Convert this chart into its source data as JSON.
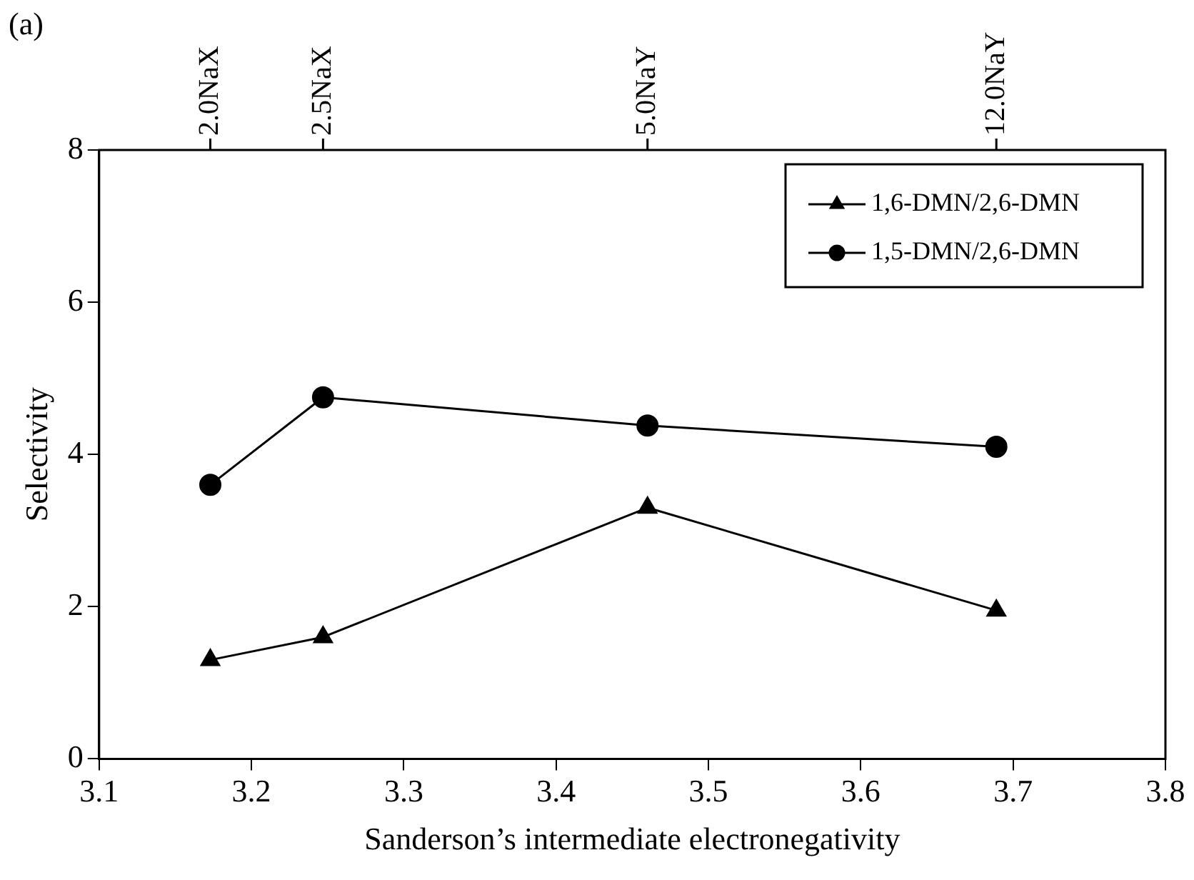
{
  "chart_data": {
    "type": "line",
    "xlabel": "Sanderson’s intermediate electronegativity",
    "ylabel": "Selectivity",
    "annotations": [
      "(a)",
      {
        "text": "2.0NaX",
        "x": 3.173
      },
      {
        "text": "2.5NaX",
        "x": 3.247
      },
      {
        "text": "5.0NaY",
        "x": 3.46
      },
      {
        "text": "12.0NaY",
        "x": 3.689
      }
    ],
    "xlim": [
      3.1,
      3.8
    ],
    "xticks": [
      3.1,
      3.2,
      3.3,
      3.4,
      3.5,
      3.6,
      3.7,
      3.8
    ],
    "ylim": [
      0,
      8
    ],
    "yticks": [
      0,
      2,
      4,
      6,
      8
    ],
    "grid": false,
    "legend": "top right",
    "line_style": "solid",
    "x": [
      3.173,
      3.247,
      3.46,
      3.689
    ],
    "series": [
      {
        "name": "1,6-DMN/2,6-DMN",
        "color": "#000000",
        "marker": "triangle",
        "values": [
          1.3,
          1.6,
          3.3,
          1.95
        ]
      },
      {
        "name": "1,5-DMN/2,6-DMN",
        "color": "#000000",
        "marker": "circle",
        "values": [
          3.6,
          4.75,
          4.38,
          4.1
        ]
      }
    ]
  }
}
